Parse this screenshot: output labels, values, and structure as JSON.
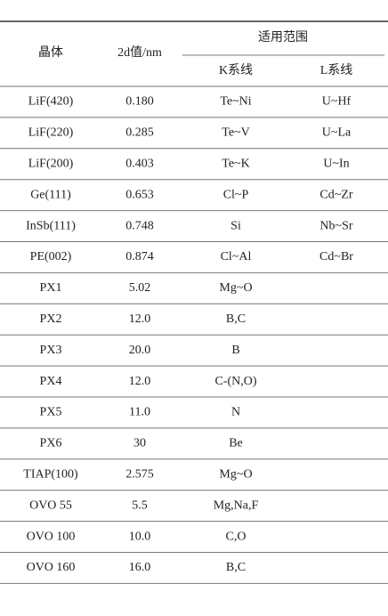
{
  "table": {
    "header": {
      "crystal": "晶体",
      "spacing": "2d值/nm",
      "range": "适用范围",
      "k_lines": "K系线",
      "l_lines": "L系线"
    },
    "rows": [
      [
        "LiF(420)",
        "0.180",
        "Te~Ni",
        "U~Hf"
      ],
      [
        "LiF(220)",
        "0.285",
        "Te~V",
        "U~La"
      ],
      [
        "LiF(200)",
        "0.403",
        "Te~K",
        "U~In"
      ],
      [
        "Ge(111)",
        "0.653",
        "Cl~P",
        "Cd~Zr"
      ],
      [
        "InSb(111)",
        "0.748",
        "Si",
        "Nb~Sr"
      ],
      [
        "PE(002)",
        "0.874",
        "Cl~Al",
        "Cd~Br"
      ],
      [
        "PX1",
        "5.02",
        "Mg~O"
      ],
      [
        "PX2",
        "12.0",
        "B,C"
      ],
      [
        "PX3",
        "20.0",
        "B"
      ],
      [
        "PX4",
        "12.0",
        "C-(N,O)"
      ],
      [
        "PX5",
        "11.0",
        "N"
      ],
      [
        "PX6",
        "30",
        "Be"
      ],
      [
        "TIAP(100)",
        "2.575",
        "Mg~O"
      ],
      [
        "OVO 55",
        "5.5",
        "Mg,Na,F"
      ],
      [
        "OVO 100",
        "10.0",
        "C,O"
      ],
      [
        "OVO 160",
        "16.0",
        "B,C"
      ]
    ]
  }
}
